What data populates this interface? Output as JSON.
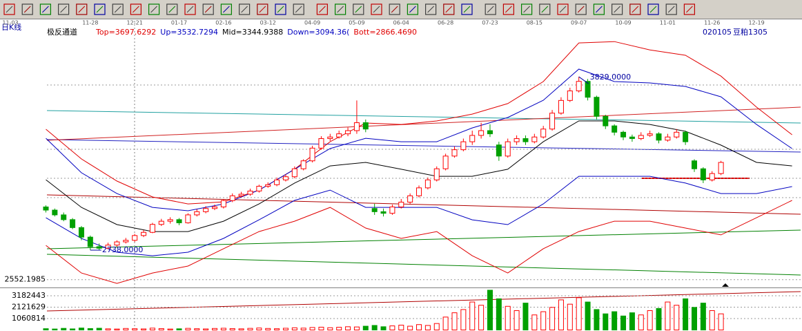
{
  "chart_data": {
    "type": "candlestick",
    "period_label": "日K线",
    "indicator": "极反通道",
    "code": "020105",
    "name": "豆粕1305",
    "up_color": "#ff0000",
    "down_color": "#00a000",
    "grid": true,
    "categories": [
      "11-03",
      null,
      null,
      null,
      null,
      null,
      null,
      null,
      null,
      "11-28",
      null,
      null,
      null,
      null,
      "12-21",
      null,
      null,
      null,
      null,
      "01-17",
      null,
      null,
      null,
      null,
      "02-16",
      null,
      null,
      null,
      null,
      "03-12",
      null,
      null,
      null,
      null,
      "04-09",
      null,
      null,
      null,
      null,
      "05-09",
      null,
      null,
      null,
      null,
      "06-04",
      null,
      null,
      null,
      null,
      "06-28",
      null,
      null,
      null,
      null,
      "07-23",
      null,
      null,
      null,
      null,
      "08-15",
      null,
      null,
      null,
      null,
      "09-07",
      null,
      null,
      null,
      null,
      "10-09",
      null,
      null,
      null,
      null,
      "11-01",
      null,
      null,
      null,
      null,
      "11-26",
      null,
      null,
      null,
      null,
      "12-19",
      null,
      null,
      null,
      null
    ],
    "open": [
      null,
      null,
      null,
      null,
      3010,
      2990,
      2960,
      2930,
      2880,
      2820,
      2760,
      2750,
      2770,
      2790,
      2800,
      2830,
      2850,
      2900,
      2920,
      2930,
      2910,
      2960,
      2980,
      3000,
      3010,
      3050,
      3080,
      3090,
      3110,
      3140,
      3150,
      3180,
      3200,
      3250,
      3300,
      3380,
      3440,
      3450,
      3470,
      3490,
      3540,
      3000,
      2980,
      2970,
      3010,
      3040,
      3080,
      3130,
      3180,
      3250,
      3330,
      3370,
      3420,
      3460,
      3490,
      3400,
      3330,
      3420,
      3440,
      3420,
      3450,
      3500,
      3600,
      3680,
      3740,
      3800,
      3700,
      3580,
      3520,
      3480,
      3450,
      3440,
      3460,
      3470,
      3430,
      3450,
      3480,
      3300,
      3250,
      3180,
      3220,
      null,
      null,
      null,
      null,
      null,
      null,
      null,
      null
    ],
    "close": [
      null,
      null,
      null,
      null,
      2990,
      2960,
      2930,
      2880,
      2820,
      2760,
      2750,
      2770,
      2790,
      2800,
      2830,
      2850,
      2900,
      2920,
      2930,
      2910,
      2960,
      2980,
      3000,
      3010,
      3050,
      3080,
      3090,
      3110,
      3140,
      3150,
      3180,
      3200,
      3250,
      3300,
      3380,
      3440,
      3450,
      3470,
      3490,
      3540,
      3500,
      2980,
      2970,
      3010,
      3040,
      3080,
      3130,
      3180,
      3250,
      3330,
      3370,
      3420,
      3460,
      3490,
      3470,
      3330,
      3420,
      3440,
      3420,
      3450,
      3500,
      3600,
      3680,
      3740,
      3800,
      3700,
      3580,
      3520,
      3480,
      3450,
      3440,
      3460,
      3470,
      3430,
      3450,
      3480,
      3420,
      3250,
      3180,
      3220,
      3290,
      null,
      null,
      null,
      null,
      null,
      null,
      null,
      null
    ],
    "high": [
      null,
      null,
      null,
      null,
      3020,
      3000,
      2975,
      2940,
      2890,
      2830,
      2780,
      2785,
      2800,
      2815,
      2840,
      2865,
      2910,
      2935,
      2945,
      2940,
      2970,
      2995,
      3015,
      3025,
      3060,
      3095,
      3105,
      3125,
      3150,
      3165,
      3195,
      3215,
      3265,
      3310,
      3395,
      3455,
      3470,
      3490,
      3510,
      3680,
      3560,
      3030,
      3000,
      3025,
      3060,
      3095,
      3145,
      3195,
      3265,
      3345,
      3390,
      3440,
      3490,
      3540,
      3530,
      3420,
      3440,
      3460,
      3460,
      3470,
      3520,
      3620,
      3700,
      3760,
      3829,
      3815,
      3710,
      3590,
      3530,
      3490,
      3465,
      3480,
      3490,
      3480,
      3470,
      3500,
      3490,
      3310,
      3260,
      3235,
      3300,
      null,
      null,
      null,
      null,
      null,
      null,
      null,
      null
    ],
    "low": [
      null,
      null,
      null,
      null,
      2975,
      2950,
      2920,
      2870,
      2800,
      2738,
      2740,
      2745,
      2760,
      2780,
      2790,
      2820,
      2845,
      2890,
      2905,
      2895,
      2905,
      2950,
      2970,
      2990,
      3000,
      3040,
      3070,
      3080,
      3100,
      3130,
      3140,
      3170,
      3190,
      3240,
      3290,
      3370,
      3425,
      3440,
      3455,
      3470,
      3480,
      2960,
      2950,
      2960,
      3000,
      3030,
      3070,
      3120,
      3170,
      3240,
      3320,
      3360,
      3400,
      3440,
      3450,
      3300,
      3320,
      3400,
      3400,
      3410,
      3440,
      3490,
      3590,
      3670,
      3730,
      3680,
      3560,
      3500,
      3460,
      3430,
      3420,
      3430,
      3450,
      3410,
      3420,
      3440,
      3400,
      3230,
      3160,
      3170,
      3210,
      null,
      null,
      null,
      null,
      null,
      null,
      null,
      null
    ],
    "volume": [
      null,
      null,
      null,
      null,
      120000,
      90000,
      150000,
      100000,
      180000,
      130000,
      160000,
      110000,
      90000,
      140000,
      120000,
      100000,
      170000,
      130000,
      90000,
      110000,
      150000,
      120000,
      100000,
      140000,
      160000,
      130000,
      110000,
      150000,
      180000,
      140000,
      120000,
      160000,
      200000,
      170000,
      230000,
      260000,
      210000,
      250000,
      300000,
      280000,
      350000,
      420000,
      300000,
      380000,
      450000,
      350000,
      500000,
      420000,
      600000,
      1200000,
      1600000,
      1900000,
      2600000,
      2300000,
      3700000,
      2900000,
      2200000,
      1800000,
      2500000,
      1400000,
      1700000,
      2100000,
      2800000,
      2400000,
      3000000,
      2600000,
      1900000,
      1500000,
      1700000,
      1300000,
      1600000,
      1400000,
      1800000,
      2000000,
      2600000,
      2300000,
      2900000,
      2100000,
      2500000,
      1800000,
      1500000,
      null,
      null,
      null,
      null,
      null,
      null,
      null,
      null
    ],
    "ylim": [
      2525,
      4138
    ],
    "yticks": [
      {
        "value": 2552.1985,
        "label": "2552.1985"
      }
    ],
    "volume_ylim": [
      0,
      3825000
    ],
    "volume_yticks": [
      3182443,
      2121629,
      1060814
    ],
    "high_label": {
      "value": 3829,
      "label": "3829.0000"
    },
    "low_label": {
      "value": 2738,
      "label": "2738.0000"
    },
    "series": [
      {
        "label": "Top=3697.6292",
        "color": "#e00000",
        "x": [
          4,
          8,
          12,
          16,
          20,
          24,
          28,
          32,
          36,
          40,
          44,
          48,
          52,
          56,
          60,
          64,
          68,
          72,
          76,
          80,
          84,
          88
        ],
        "values": [
          3499,
          3312,
          3173,
          3073,
          3029,
          3042,
          3116,
          3247,
          3420,
          3538,
          3529,
          3551,
          3594,
          3660,
          3799,
          4042,
          4050,
          3998,
          3964,
          3833,
          3638,
          3464
        ]
      },
      {
        "label": "Up=3532.7294",
        "color": "#0000c0",
        "x": [
          4,
          8,
          12,
          16,
          20,
          24,
          28,
          32,
          36,
          40,
          44,
          48,
          52,
          56,
          60,
          64,
          68,
          72,
          76,
          80,
          84,
          88
        ],
        "values": [
          3442,
          3225,
          3094,
          3007,
          2986,
          3029,
          3116,
          3247,
          3377,
          3442,
          3420,
          3420,
          3507,
          3573,
          3681,
          3877,
          3799,
          3790,
          3768,
          3703,
          3529,
          3377
        ]
      },
      {
        "label": "Mid=3344.9388",
        "color": "#000000",
        "x": [
          4,
          8,
          12,
          16,
          20,
          24,
          28,
          32,
          36,
          40,
          44,
          48,
          52,
          56,
          60,
          64,
          68,
          72,
          76,
          80,
          84,
          88
        ],
        "values": [
          3181,
          3007,
          2899,
          2855,
          2855,
          2920,
          3029,
          3160,
          3268,
          3290,
          3247,
          3203,
          3203,
          3247,
          3420,
          3551,
          3551,
          3529,
          3486,
          3399,
          3290,
          3268
        ]
      },
      {
        "label": "Down=3094.36(",
        "color": "#0000c0",
        "x": [
          4,
          8,
          12,
          16,
          20,
          24,
          28,
          32,
          36,
          40,
          44,
          48,
          52,
          56,
          60,
          64,
          68,
          72,
          76,
          80,
          84,
          88
        ],
        "values": [
          2942,
          2812,
          2725,
          2703,
          2725,
          2812,
          2929,
          3051,
          3116,
          3007,
          3007,
          3007,
          2929,
          2899,
          3029,
          3203,
          3203,
          3203,
          3160,
          3094,
          3094,
          3138
        ]
      },
      {
        "label": "Bott=2866.4690",
        "color": "#e00000",
        "x": [
          4,
          8,
          12,
          16,
          20,
          24,
          28,
          32,
          36,
          40,
          44,
          48,
          52,
          56,
          60,
          64,
          68,
          72,
          76,
          80,
          84,
          88
        ],
        "values": [
          2768,
          2594,
          2529,
          2594,
          2638,
          2747,
          2855,
          2920,
          3007,
          2877,
          2812,
          2855,
          2703,
          2594,
          2747,
          2855,
          2920,
          2920,
          2877,
          2834,
          2942,
          3051
        ]
      }
    ]
  }
}
